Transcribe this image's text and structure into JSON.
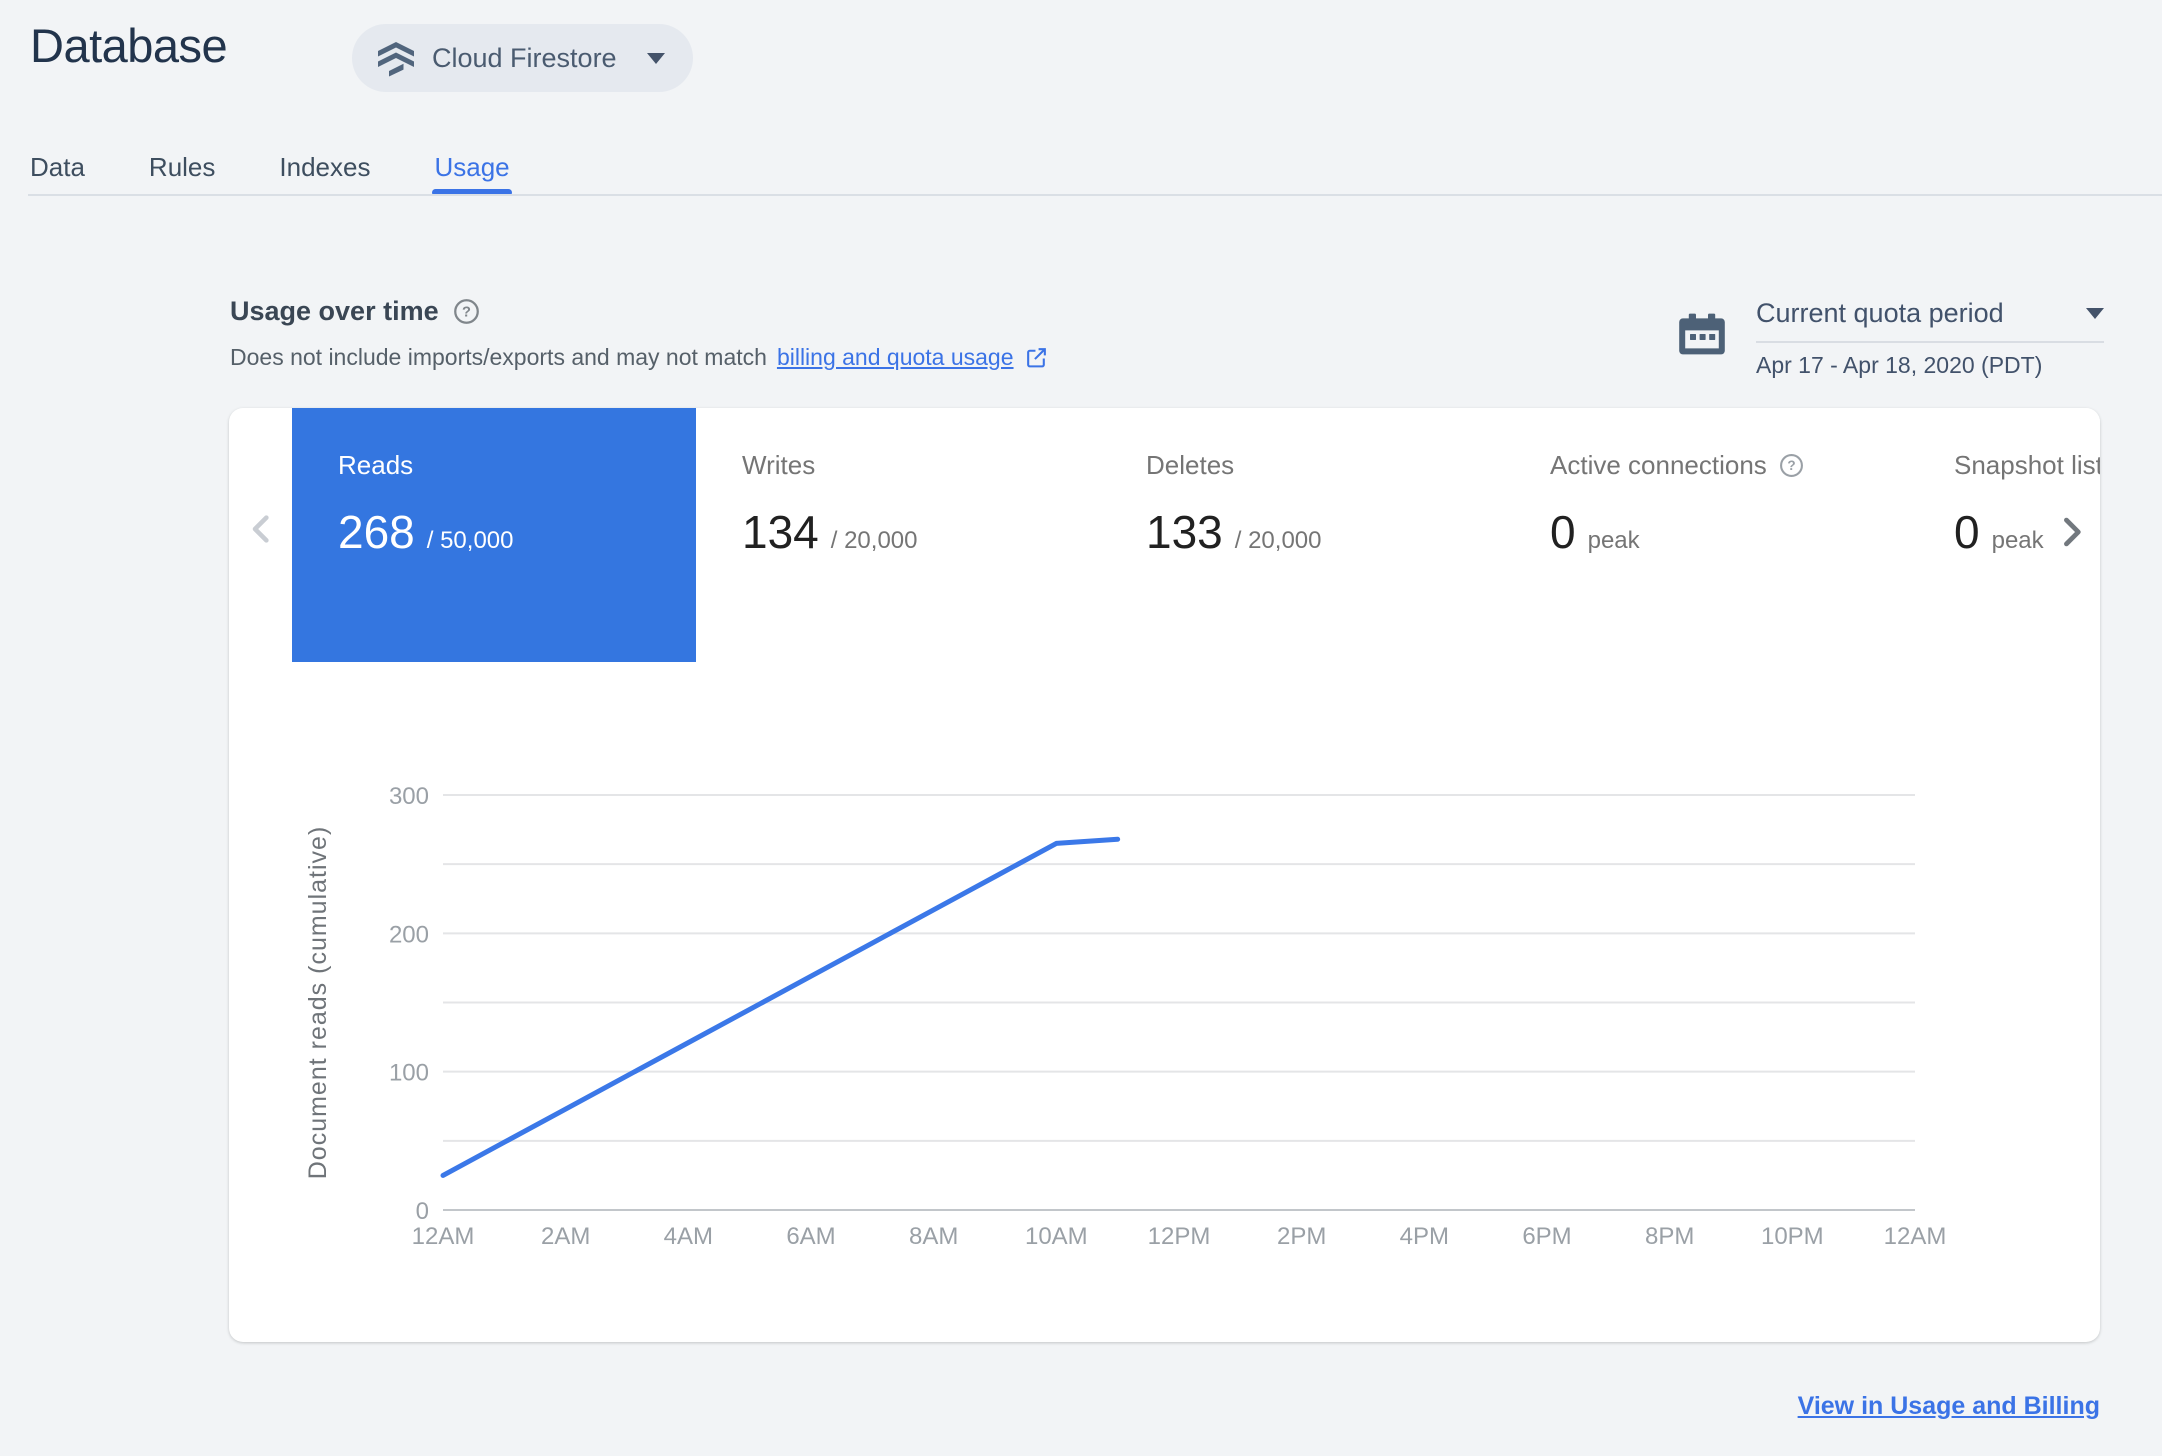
{
  "header": {
    "title": "Database",
    "product_selector": {
      "label": "Cloud Firestore"
    }
  },
  "tabs": [
    {
      "label": "Data",
      "active": false
    },
    {
      "label": "Rules",
      "active": false
    },
    {
      "label": "Indexes",
      "active": false
    },
    {
      "label": "Usage",
      "active": true
    }
  ],
  "section": {
    "heading": "Usage over time",
    "description_prefix": "Does not include imports/exports and may not match",
    "description_link": "billing and quota usage",
    "quota_selector": {
      "label": "Current quota period",
      "range": "Apr 17 - Apr 18, 2020 (PDT)"
    }
  },
  "metrics": [
    {
      "label": "Reads",
      "value": "268",
      "suffix": "/ 50,000",
      "selected": true
    },
    {
      "label": "Writes",
      "value": "134",
      "suffix": "/ 20,000",
      "selected": false
    },
    {
      "label": "Deletes",
      "value": "133",
      "suffix": "/ 20,000",
      "selected": false
    },
    {
      "label": "Active connections",
      "value": "0",
      "suffix": "peak",
      "selected": false
    },
    {
      "label": "Snapshot listeners",
      "value": "0",
      "suffix": "peak",
      "selected": false
    }
  ],
  "chart_data": {
    "type": "line",
    "title": "",
    "xlabel": "",
    "ylabel": "Document reads (cumulative)",
    "ylim": [
      0,
      300
    ],
    "yticks_labeled": [
      0,
      100,
      200,
      300
    ],
    "gridline_step": 50,
    "x_hours": [
      0,
      1,
      2,
      3,
      4,
      5,
      6,
      7,
      8,
      9,
      10,
      11
    ],
    "values": [
      25,
      49,
      73,
      97,
      121,
      145,
      169,
      193,
      217,
      241,
      265,
      268
    ],
    "xtick_hours": [
      0,
      2,
      4,
      6,
      8,
      10,
      12,
      14,
      16,
      18,
      20,
      22,
      24
    ],
    "xtick_labels": [
      "12AM",
      "2AM",
      "4AM",
      "6AM",
      "8AM",
      "10AM",
      "12PM",
      "2PM",
      "4PM",
      "6PM",
      "8PM",
      "10PM",
      "12AM"
    ],
    "series_name": "Reads",
    "line_color": "#3b78e8",
    "legend": "none",
    "grid": true
  },
  "footer": {
    "link_label": "View in Usage and Billing"
  },
  "colors": {
    "accent_blue": "#3b73e6",
    "selected_card_blue": "#3476e0",
    "chart_line_blue": "#3b78e8",
    "title_navy": "#22344c",
    "slate_icon": "#4d6177",
    "label_gray": "#757575",
    "value_dark": "#212121",
    "tick_gray": "#9aa0a6",
    "page_bg": "#f2f4f6",
    "panel_bg": "#ffffff"
  }
}
